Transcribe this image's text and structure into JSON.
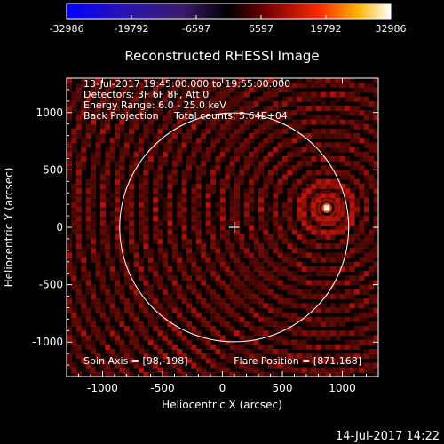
{
  "chart_data": {
    "type": "heatmap",
    "title": "Reconstructed RHESSI Image",
    "xlabel": "Heliocentric X (arcsec)",
    "ylabel": "Heliocentric Y (arcsec)",
    "xlim": [
      -1300,
      1300
    ],
    "ylim": [
      -1300,
      1300
    ],
    "xticks": [
      -1000,
      -500,
      0,
      500,
      1000
    ],
    "yticks": [
      -1000,
      -500,
      0,
      500,
      1000
    ],
    "colorbar": {
      "ticks": [
        -32986,
        -19792,
        -6597,
        6597,
        19792,
        32986
      ],
      "range": [
        -32986,
        32986
      ]
    },
    "annotations": {
      "line1": "13-Jul-2017 19:45:00.000 to 19:55:00.000",
      "line2": "Detectors: 3F 6F 8F, Att 0",
      "line3": "Energy Range: 6.0 - 25.0 keV",
      "line4a": "Back Projection",
      "line4b": "Total counts: 5.64E+04",
      "spin_axis": "Spin Axis = [98,-198]",
      "flare_position": "Flare Position = [871,168]"
    },
    "solar_disk": {
      "center": [
        98,
        0
      ],
      "radius": 955
    },
    "sun_center_marker": [
      98,
      0
    ],
    "flare_source": {
      "x": 871,
      "y": 168
    }
  },
  "timestamp": "14-Jul-2017 14:22",
  "colors": {
    "background": "#000000",
    "foreground": "#ffffff",
    "image_dark": "#1a0000",
    "image_red": "#8c0f0a",
    "flare_core": "#ffcc00"
  }
}
